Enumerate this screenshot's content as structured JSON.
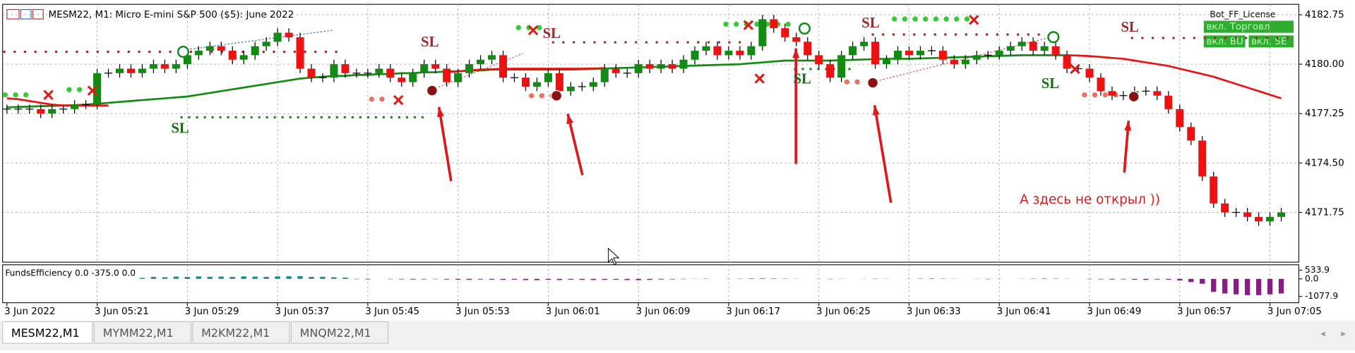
{
  "header": {
    "title": "MESM22, M1:  Micro E-mini S&P 500 ($5): June 2022",
    "license": "Bot_FF_License",
    "buttons": [
      "вкл. Торговл",
      "вкл. BU",
      "вкл. SE"
    ]
  },
  "tabs": [
    "MESM22,M1",
    "MYMM22,M1",
    "M2KM22,M1",
    "MNQM22,M1"
  ],
  "chart_data": {
    "type": "candlestick",
    "x": [
      "3 Jun 2022",
      null,
      null,
      null,
      null,
      null,
      null,
      null,
      "3 Jun 05:21",
      null,
      null,
      null,
      null,
      null,
      null,
      null,
      "3 Jun 05:29",
      null,
      null,
      null,
      null,
      null,
      null,
      null,
      "3 Jun 05:37",
      null,
      null,
      null,
      null,
      null,
      null,
      null,
      "3 Jun 05:45",
      null,
      null,
      null,
      null,
      null,
      null,
      null,
      "3 Jun 05:53",
      null,
      null,
      null,
      null,
      null,
      null,
      null,
      "3 Jun 06:01",
      null,
      null,
      null,
      null,
      null,
      null,
      null,
      "3 Jun 06:09",
      null,
      null,
      null,
      null,
      null,
      null,
      null,
      "3 Jun 06:17",
      null,
      null,
      null,
      null,
      null,
      null,
      null,
      "3 Jun 06:25",
      null,
      null,
      null,
      null,
      null,
      null,
      null,
      "3 Jun 06:33",
      null,
      null,
      null,
      null,
      null,
      null,
      null,
      "3 Jun 06:41",
      null,
      null,
      null,
      null,
      null,
      null,
      null,
      "3 Jun 06:49",
      null,
      null,
      null,
      null,
      null,
      null,
      null,
      "3 Jun 06:57",
      null,
      null,
      null,
      null,
      null,
      null,
      null,
      "3 Jun 07:05",
      null
    ],
    "open": [
      4177.5,
      4177.5,
      4177.5,
      4177.5,
      4177.25,
      4177.5,
      4177.5,
      4177.75,
      4177.75,
      4179.5,
      4179.5,
      4179.75,
      4179.5,
      4179.75,
      4180.0,
      4179.75,
      4180.0,
      4180.5,
      4180.75,
      4181.0,
      4180.75,
      4180.25,
      4180.5,
      4181.0,
      4181.25,
      4181.75,
      4181.5,
      4179.75,
      4179.25,
      4179.25,
      4180.0,
      4179.5,
      4179.5,
      4179.5,
      4179.75,
      4179.25,
      4179.0,
      4179.5,
      4180.0,
      4179.75,
      4179.0,
      4179.5,
      4180.0,
      4180.25,
      4180.5,
      4179.25,
      4179.25,
      4178.75,
      4179.0,
      4179.5,
      4178.5,
      4178.75,
      4178.75,
      4179.0,
      4179.75,
      4179.5,
      4179.5,
      4180.0,
      4179.75,
      4180.0,
      4179.75,
      4180.25,
      4180.75,
      4181.0,
      4180.5,
      4180.75,
      4180.5,
      4181.0,
      4182.5,
      4182.0,
      4181.5,
      4181.25,
      4180.5,
      4180.0,
      4179.25,
      4180.5,
      4181.0,
      4181.25,
      4180.0,
      4180.25,
      4180.75,
      4180.5,
      4180.75,
      4180.75,
      4180.25,
      4180.0,
      4180.25,
      4180.5,
      4180.5,
      4180.75,
      4181.0,
      4181.25,
      4180.75,
      4181.0,
      4180.5,
      4179.75,
      4179.75,
      4179.25,
      4178.5,
      4178.25,
      4178.25,
      4178.5,
      4178.5,
      4178.25,
      4177.5,
      4176.5,
      4175.75,
      4173.75,
      4172.25,
      4171.75,
      4171.75,
      4171.5,
      4171.25,
      4171.5
    ],
    "high": [
      4177.75,
      4177.75,
      4177.75,
      4177.75,
      4177.75,
      4177.75,
      4178.0,
      4178.0,
      4179.75,
      4179.75,
      4180.0,
      4180.0,
      4180.0,
      4180.25,
      4180.25,
      4180.25,
      4180.75,
      4181.0,
      4181.25,
      4181.25,
      4181.0,
      4180.75,
      4181.25,
      4181.5,
      4182.0,
      4182.0,
      4181.75,
      4180.0,
      4179.5,
      4180.25,
      4180.25,
      4179.75,
      4179.75,
      4180.0,
      4180.0,
      4179.5,
      4179.75,
      4180.25,
      4180.25,
      4180.0,
      4179.75,
      4180.25,
      4180.5,
      4180.75,
      4180.75,
      4179.5,
      4179.5,
      4179.25,
      4179.75,
      4179.75,
      4179.0,
      4179.0,
      4179.25,
      4180.0,
      4180.0,
      4179.75,
      4180.25,
      4180.25,
      4180.25,
      4180.25,
      4180.5,
      4181.0,
      4181.25,
      4181.25,
      4181.0,
      4181.0,
      4181.25,
      4182.75,
      4182.75,
      4182.25,
      4181.75,
      4181.5,
      4180.75,
      4180.25,
      4180.75,
      4181.25,
      4181.5,
      4181.5,
      4180.5,
      4181.0,
      4181.0,
      4181.0,
      4181.0,
      4181.0,
      4180.5,
      4180.5,
      4180.75,
      4180.75,
      4181.0,
      4181.25,
      4181.5,
      4181.5,
      4181.25,
      4181.25,
      4180.75,
      4180.0,
      4180.0,
      4179.5,
      4178.75,
      4178.5,
      4178.75,
      4178.75,
      4178.75,
      4178.5,
      4177.75,
      4176.75,
      4176.0,
      4174.0,
      4172.5,
      4172.0,
      4172.0,
      4171.75,
      4171.75,
      4172.0
    ],
    "low": [
      4177.25,
      4177.25,
      4177.25,
      4177.0,
      4177.0,
      4177.25,
      4177.25,
      4177.5,
      4177.5,
      4179.25,
      4179.25,
      4179.25,
      4179.25,
      4179.5,
      4179.5,
      4179.5,
      4179.75,
      4180.25,
      4180.5,
      4180.5,
      4180.0,
      4180.0,
      4180.25,
      4180.75,
      4181.0,
      4181.25,
      4179.5,
      4179.0,
      4179.0,
      4179.0,
      4179.25,
      4179.25,
      4179.25,
      4179.25,
      4179.0,
      4178.75,
      4178.75,
      4179.25,
      4179.5,
      4178.75,
      4178.75,
      4179.25,
      4179.75,
      4180.0,
      4179.0,
      4179.0,
      4178.5,
      4178.5,
      4178.75,
      4178.25,
      4178.25,
      4178.5,
      4178.5,
      4178.75,
      4179.25,
      4179.25,
      4179.25,
      4179.5,
      4179.5,
      4179.5,
      4179.5,
      4180.0,
      4180.5,
      4180.25,
      4180.25,
      4180.25,
      4180.25,
      4180.75,
      4181.75,
      4181.25,
      4181.0,
      4180.25,
      4179.75,
      4179.0,
      4179.0,
      4180.25,
      4180.75,
      4179.75,
      4179.75,
      4180.0,
      4180.25,
      4180.25,
      4180.5,
      4180.0,
      4179.75,
      4179.75,
      4180.0,
      4180.25,
      4180.25,
      4180.5,
      4180.75,
      4180.5,
      4180.5,
      4180.25,
      4179.5,
      4179.5,
      4179.0,
      4178.25,
      4178.0,
      4178.0,
      4178.0,
      4178.25,
      4178.0,
      4177.25,
      4176.25,
      4175.5,
      4173.5,
      4172.0,
      4171.5,
      4171.5,
      4171.25,
      4171.0,
      4171.0,
      4171.25
    ],
    "close": [
      4177.5,
      4177.5,
      4177.5,
      4177.25,
      4177.5,
      4177.5,
      4177.75,
      4177.75,
      4179.5,
      4179.5,
      4179.75,
      4179.5,
      4179.75,
      4180.0,
      4179.75,
      4180.0,
      4180.5,
      4180.75,
      4181.0,
      4180.75,
      4180.25,
      4180.5,
      4181.0,
      4181.25,
      4181.75,
      4181.5,
      4179.75,
      4179.25,
      4179.25,
      4180.0,
      4179.5,
      4179.5,
      4179.5,
      4179.75,
      4179.25,
      4179.0,
      4179.5,
      4180.0,
      4179.75,
      4179.0,
      4179.5,
      4180.0,
      4180.25,
      4180.5,
      4179.25,
      4179.25,
      4178.75,
      4179.0,
      4179.5,
      4178.5,
      4178.75,
      4178.75,
      4179.0,
      4179.75,
      4179.5,
      4179.5,
      4180.0,
      4179.75,
      4180.0,
      4179.75,
      4180.25,
      4180.75,
      4181.0,
      4180.5,
      4180.75,
      4180.5,
      4181.0,
      4182.5,
      4182.0,
      4181.5,
      4181.25,
      4180.5,
      4180.0,
      4179.25,
      4180.5,
      4181.0,
      4181.25,
      4180.0,
      4180.25,
      4180.75,
      4180.5,
      4180.75,
      4180.75,
      4180.25,
      4180.0,
      4180.25,
      4180.5,
      4180.5,
      4180.75,
      4181.0,
      4181.25,
      4180.75,
      4181.0,
      4180.5,
      4179.75,
      4179.75,
      4179.25,
      4178.5,
      4178.25,
      4178.25,
      4178.5,
      4178.5,
      4178.25,
      4177.5,
      4176.5,
      4175.75,
      4173.75,
      4172.25,
      4171.75,
      4171.75,
      4171.5,
      4171.25,
      4171.5,
      4171.75
    ],
    "up_color": "#138a13",
    "down_color": "#ee1111",
    "lines": [
      {
        "color": "#138a13",
        "values": [
          4177.6,
          4177.62,
          4177.64,
          4177.66,
          4177.68,
          4177.7,
          4177.72,
          4177.75,
          4177.8,
          4177.85,
          4177.9,
          4177.95,
          4178.0,
          4178.05,
          4178.1,
          4178.15,
          4178.2,
          4178.3,
          4178.4,
          4178.5,
          4178.6,
          4178.7,
          4178.8,
          4178.9,
          4179.0,
          4179.1,
          4179.2,
          4179.25,
          4179.3,
          4179.35,
          4179.35,
          4179.4,
          4179.4,
          4179.45,
          4179.45,
          4179.5,
          4179.5,
          4179.55,
          4179.55,
          4179.6,
          4179.6,
          4179.65,
          4179.65,
          4179.7,
          4179.7,
          4179.7,
          4179.7,
          4179.7,
          4179.7,
          4179.7,
          4179.7,
          4179.72,
          4179.74,
          4179.76,
          4179.78,
          4179.8,
          4179.82,
          4179.84,
          4179.86,
          4179.88,
          4179.9,
          4179.92,
          4179.94,
          4179.96,
          4179.98,
          4180.0,
          4180.05,
          4180.1,
          4180.15,
          4180.2,
          4180.2,
          4180.2,
          4180.2,
          4180.2,
          4180.22,
          4180.24,
          4180.26,
          4180.28,
          4180.3,
          4180.3,
          4180.3,
          4180.32,
          4180.34,
          4180.36,
          4180.38,
          4180.4,
          4180.42,
          4180.44,
          4180.46,
          4180.48,
          4180.5,
          4180.5,
          4180.5,
          4180.5,
          4180.5,
          null,
          null,
          null,
          null,
          null,
          null,
          null,
          null,
          null,
          null,
          null,
          null,
          null,
          null,
          null,
          null,
          null,
          null,
          null
        ]
      },
      {
        "color": "#ee1111",
        "values": [
          4178.1,
          4178.05,
          4177.95,
          4177.85,
          4177.75,
          4177.7,
          4177.7,
          4177.7,
          4177.7,
          4177.7,
          null,
          null,
          null,
          null,
          null,
          null,
          null,
          null,
          null,
          null,
          null,
          null,
          null,
          null,
          null,
          null,
          null,
          null,
          null,
          null,
          null,
          null,
          null,
          null,
          null,
          null,
          null,
          null,
          null,
          4179.55,
          4179.6,
          4179.65,
          4179.7,
          4179.72,
          4179.74,
          4179.75,
          4179.75,
          4179.75,
          4179.75,
          4179.75,
          4179.75,
          4179.75,
          4179.76,
          4179.78,
          null,
          null,
          null,
          null,
          null,
          null,
          null,
          null,
          null,
          null,
          null,
          null,
          null,
          null,
          null,
          null,
          null,
          null,
          null,
          null,
          null,
          null,
          null,
          null,
          null,
          null,
          null,
          null,
          null,
          null,
          null,
          null,
          null,
          null,
          null,
          null,
          null,
          null,
          null,
          null,
          4180.5,
          4180.48,
          4180.45,
          4180.4,
          4180.35,
          4180.3,
          4180.2,
          4180.1,
          4180.0,
          4179.9,
          4179.75,
          4179.6,
          4179.45,
          4179.3,
          4179.1,
          4178.9,
          4178.7,
          4178.5,
          4178.3,
          4178.1
        ]
      }
    ],
    "ylim": [
      4168.98,
      4183.33
    ],
    "yticks": [
      {
        "value": 4171.75,
        "label": "4171.75"
      },
      {
        "value": 4174.5,
        "label": "4174.50"
      },
      4177.25,
      {
        "value": 4180,
        "label": "4180.00"
      },
      4182.75
    ],
    "grid": true,
    "annotations": [
      "SL",
      "SL",
      "SL",
      "SL",
      "SL",
      "SL",
      "SL",
      "А здесь не открыл ))"
    ],
    "indicator": {
      "label": "FundsEfficiency 0.0 -375.0 0.0",
      "ylim": [
        -1467,
        867
      ],
      "yticks": [
        533.9,
        {
          "value": 0,
          "label": "0.0"
        },
        -1077.9
      ],
      "up_color": "#1a8a8a",
      "down_color": "#8b1a8b",
      "values": [
        0,
        0,
        0,
        0,
        0,
        0,
        0,
        0,
        0,
        0,
        0,
        0,
        60,
        120,
        100,
        140,
        120,
        150,
        130,
        140,
        120,
        150,
        140,
        120,
        150,
        160,
        170,
        120,
        130,
        100,
        80,
        -20,
        -30,
        0,
        -20,
        -30,
        -40,
        -30,
        -20,
        -40,
        -50,
        -60,
        -40,
        -50,
        -60,
        -50,
        -70,
        -80,
        -60,
        -70,
        -50,
        -60,
        -70,
        -60,
        -50,
        -70,
        -80,
        -60,
        -40,
        -30,
        -20,
        10,
        20,
        0,
        10,
        20,
        30,
        40,
        30,
        20,
        10,
        0,
        -10,
        -20,
        -10,
        0,
        10,
        20,
        10,
        0,
        10,
        20,
        30,
        20,
        10,
        0,
        -10,
        -20,
        -10,
        0,
        10,
        20,
        30,
        20,
        10,
        0,
        -20,
        -30,
        -40,
        -30,
        -50,
        -60,
        -40,
        -50,
        -100,
        -200,
        -300,
        -800,
        -900,
        -950,
        -1000,
        -1000,
        -950,
        -900
      ]
    }
  }
}
